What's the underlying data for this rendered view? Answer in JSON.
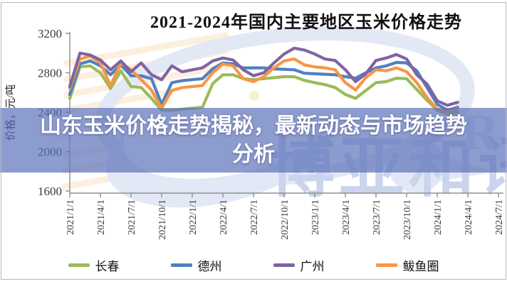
{
  "chart": {
    "title": "2021-2024年国内主要地区玉米价格走势",
    "y_axis_title": "价格，元/吨",
    "axis_color": "#8f8f8f",
    "tick_label_color": "#3a3a3a"
  },
  "chart_data": {
    "type": "line",
    "title": "2021-2024年国内主要地区玉米价格走势",
    "xlabel": "",
    "ylabel": "价格，元/吨",
    "ylim": [
      1600,
      3200
    ],
    "y_ticks": [
      3200,
      2800,
      2400,
      2000,
      1600
    ],
    "x_tick_labels": [
      "2021/1/1",
      "2021/4/1",
      "2021/7/1",
      "2021/10/1",
      "2022/1/1",
      "2022/4/1",
      "2022/7/1",
      "2022/10/1",
      "2023/1/1",
      "2023/4/1",
      "2023/7/1",
      "2023/10/1",
      "2024/1/1",
      "2024/4/1",
      "2024/7/1"
    ],
    "grid": false,
    "legend_position": "bottom",
    "x": [
      "2021/1",
      "2021/2",
      "2021/3",
      "2021/4",
      "2021/5",
      "2021/6",
      "2021/7",
      "2021/8",
      "2021/9",
      "2021/10",
      "2021/11",
      "2021/12",
      "2022/1",
      "2022/2",
      "2022/3",
      "2022/4",
      "2022/5",
      "2022/6",
      "2022/7",
      "2022/8",
      "2022/9",
      "2022/10",
      "2022/11",
      "2022/12",
      "2023/1",
      "2023/2",
      "2023/3",
      "2023/4",
      "2023/5",
      "2023/6",
      "2023/7",
      "2023/8",
      "2023/9",
      "2023/10",
      "2023/11",
      "2023/12",
      "2024/1",
      "2024/2",
      "2024/3"
    ],
    "series": [
      {
        "name": "长春",
        "key": "changchun",
        "color": "#9BBB59",
        "values": [
          2540,
          2860,
          2870,
          2800,
          2640,
          2820,
          2660,
          2650,
          2540,
          2420,
          2420,
          2430,
          2440,
          2450,
          2690,
          2780,
          2780,
          2740,
          2730,
          2740,
          2750,
          2760,
          2760,
          2722,
          2700,
          2680,
          2650,
          2580,
          2540,
          2620,
          2700,
          2710,
          2745,
          2740,
          2630,
          2520,
          2420,
          2380,
          2400
        ]
      },
      {
        "name": "德州",
        "key": "dezhou",
        "color": "#4F81BD",
        "values": [
          2580,
          2890,
          2920,
          2870,
          2780,
          2880,
          2770,
          2770,
          2740,
          2480,
          2700,
          2720,
          2730,
          2740,
          2840,
          2900,
          2890,
          2850,
          2850,
          2850,
          2840,
          2835,
          2830,
          2795,
          2790,
          2785,
          2780,
          2760,
          2745,
          2800,
          2850,
          2870,
          2905,
          2900,
          2820,
          2650,
          2480,
          2420,
          2450
        ]
      },
      {
        "name": "广州",
        "key": "guangzhou",
        "color": "#8064A2",
        "values": [
          2660,
          3000,
          2980,
          2930,
          2830,
          2920,
          2810,
          2900,
          2780,
          2730,
          2870,
          2810,
          2830,
          2850,
          2920,
          2950,
          2930,
          2830,
          2770,
          2800,
          2900,
          2990,
          3050,
          3030,
          2990,
          2940,
          2925,
          2830,
          2710,
          2790,
          2925,
          2950,
          2985,
          2940,
          2780,
          2685,
          2515,
          2470,
          2500
        ]
      },
      {
        "name": "鲅鱼圈",
        "key": "bayuquan",
        "color": "#F79646",
        "values": [
          2640,
          2940,
          2970,
          2900,
          2670,
          2900,
          2830,
          2730,
          2625,
          2440,
          2620,
          2650,
          2660,
          2670,
          2800,
          2890,
          2870,
          2740,
          2710,
          2760,
          2850,
          2920,
          2940,
          2880,
          2860,
          2850,
          2830,
          2700,
          2625,
          2750,
          2830,
          2820,
          2850,
          2810,
          2700,
          2550,
          2430,
          2400,
          2430
        ]
      }
    ]
  },
  "overlay": {
    "text": "山东玉米价格走势揭秘，最新动态与市场趋势分析",
    "lines": [
      "山东玉米价格走势揭秘，最新动态与市场趋势",
      "分析"
    ],
    "band_color": "#5d72ba"
  },
  "watermark": {
    "text": "博亚和讯",
    "r_mark": "R"
  }
}
